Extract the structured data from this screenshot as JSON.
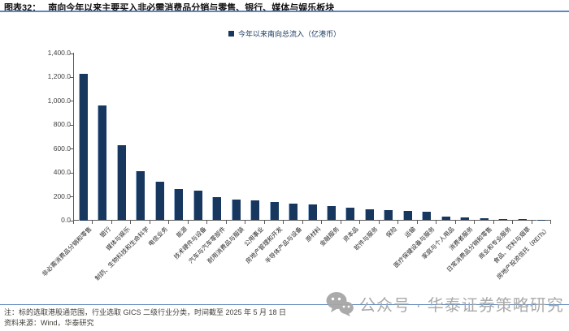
{
  "figure": {
    "label": "图表32：",
    "title": "南向今年以来主要买入非必需消费品分销与零售、银行、媒体与娱乐板块"
  },
  "legend": {
    "series_label": "今年以来南向总流入（亿港币）"
  },
  "chart_data": {
    "type": "bar",
    "title": "南向今年以来主要买入非必需消费品分销与零售、银行、媒体与娱乐板块",
    "xlabel": "",
    "ylabel": "",
    "ylim": [
      0,
      1400
    ],
    "ytick_step": 200,
    "ytick_format": "thousands_one_decimal",
    "grid": false,
    "legend_position": "top-center",
    "bar_color": "#17375E",
    "categories": [
      "非必需消费品分销和零售",
      "银行",
      "媒体与娱乐",
      "制药、生物科技和生命科学",
      "电信业务",
      "能源",
      "技术硬件与设备",
      "汽车与汽车零部件",
      "耐用消费品与服装",
      "公用事业",
      "房地产管理和开发",
      "半导体产品与设备",
      "原材料",
      "金融服务",
      "资本品",
      "软件与服务",
      "保险",
      "运输",
      "医疗保健设备与服务",
      "家庭与个人用品",
      "消费者服务",
      "日常消费品分销和零售",
      "商业和专业服务",
      "食品、饮料与烟草",
      "房地产投资信托（REITs）"
    ],
    "values": [
      1225,
      960,
      630,
      410,
      320,
      262,
      248,
      192,
      172,
      165,
      152,
      140,
      132,
      118,
      102,
      93,
      85,
      80,
      70,
      32,
      25,
      17,
      13,
      9,
      3
    ]
  },
  "footer": {
    "note": "注：标的选取港股通范围，行业选取 GICS 二级行业分类，时间截至 2025 年 5 月 18 日",
    "source": "资料来源：Wind，华泰研究"
  },
  "watermark": {
    "text": "公众号 · 华泰证券策略研究"
  },
  "colors": {
    "bar": "#17375E",
    "rule_blue": "#5e87ba",
    "axis": "#595959",
    "watermark_gray": "#a6a6a6"
  }
}
